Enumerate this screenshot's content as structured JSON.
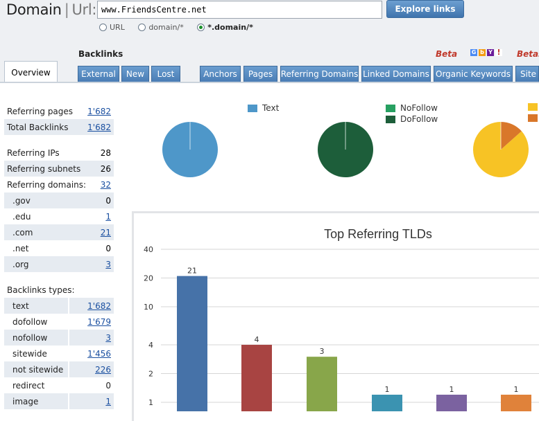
{
  "header": {
    "title": "Domain",
    "url_label": "Url:",
    "url_value": "www.FriendsCentre.net",
    "explore_button": "Explore links",
    "radios": [
      {
        "label": "URL",
        "selected": false
      },
      {
        "label": "domain/*",
        "selected": false
      },
      {
        "label": "*.domain/*",
        "selected": true
      }
    ]
  },
  "backlinks_label": "Backlinks",
  "beta_label": "Beta",
  "beta_label_2": "Betas",
  "search_engine_icons": [
    "google-icon",
    "bing-icon",
    "yahoo-icon",
    "ask-icon"
  ],
  "tabs": {
    "overview": "Overview",
    "backlinks": [
      "External",
      "New",
      "Lost"
    ],
    "main": [
      "Anchors",
      "Pages",
      "Referring Domains",
      "Linked Domains",
      "Organic Keywords",
      "Site"
    ]
  },
  "stats": {
    "referring_pages": {
      "label": "Referring pages",
      "value": "1'682"
    },
    "total_backlinks": {
      "label": "Total Backlinks",
      "value": "1'682"
    },
    "referring_ips": {
      "label": "Referring IPs",
      "value": "28"
    },
    "referring_subnets": {
      "label": "Referring subnets",
      "value": "26"
    },
    "referring_domains": {
      "label": "Referring domains:",
      "value": "32"
    },
    "tlds": [
      {
        "label": ".gov",
        "value": "0",
        "link": false
      },
      {
        "label": ".edu",
        "value": "1",
        "link": true
      },
      {
        "label": ".com",
        "value": "21",
        "link": true
      },
      {
        "label": ".net",
        "value": "0",
        "link": false
      },
      {
        "label": ".org",
        "value": "3",
        "link": true
      }
    ],
    "backlink_types_heading": "Backlinks types:",
    "backlink_types": [
      {
        "label": "text",
        "value": "1'682",
        "link": true
      },
      {
        "label": "dofollow",
        "value": "1'679",
        "link": true
      },
      {
        "label": "nofollow",
        "value": "3",
        "link": true
      },
      {
        "label": "sitewide",
        "value": "1'456",
        "link": true
      },
      {
        "label": "not sitewide",
        "value": "226",
        "link": true
      },
      {
        "label": "redirect",
        "value": "0",
        "link": false
      },
      {
        "label": "image",
        "value": "1",
        "link": true
      }
    ]
  },
  "legends": {
    "type": [
      {
        "label": "Text",
        "color": "#4e97c9"
      }
    ],
    "follow": [
      {
        "label": "NoFollow",
        "color": "#27a061"
      },
      {
        "label": "DoFollow",
        "color": "#1d5e3a"
      }
    ],
    "third": [
      {
        "label": "",
        "color": "#f7c325"
      },
      {
        "label": "",
        "color": "#d9772a"
      }
    ]
  },
  "colors": {
    "tab_blue": "#4a7db5",
    "link_blue": "#1a4fa0",
    "bar_blue": "#4672a8",
    "bar_red": "#a84442",
    "bar_green": "#88a64a",
    "bar_teal": "#3b93b1",
    "bar_purple": "#7b62a0",
    "bar_orange": "#e0823a"
  },
  "chart_data": [
    {
      "type": "pie",
      "title": "",
      "slices": [
        {
          "label": "Text",
          "value": 1682,
          "color": "#4e97c9"
        }
      ]
    },
    {
      "type": "pie",
      "title": "",
      "slices": [
        {
          "label": "DoFollow",
          "value": 1679,
          "color": "#1d5e3a"
        },
        {
          "label": "NoFollow",
          "value": 3,
          "color": "#27a061"
        }
      ]
    },
    {
      "type": "pie",
      "title": "",
      "slices": [
        {
          "label": "",
          "value": 1456,
          "color": "#f7c325"
        },
        {
          "label": "",
          "value": 226,
          "color": "#d9772a"
        }
      ]
    },
    {
      "type": "bar",
      "title": "Top Referring TLDs",
      "scale": "log",
      "y_ticks": [
        1,
        2,
        4,
        10,
        20,
        40
      ],
      "ylim": [
        1,
        40
      ],
      "values": [
        21,
        4,
        3,
        1,
        1,
        1
      ],
      "colors": [
        "#4672a8",
        "#a84442",
        "#88a64a",
        "#3b93b1",
        "#7b62a0",
        "#e0823a"
      ],
      "xlabel": "",
      "ylabel": ""
    }
  ]
}
